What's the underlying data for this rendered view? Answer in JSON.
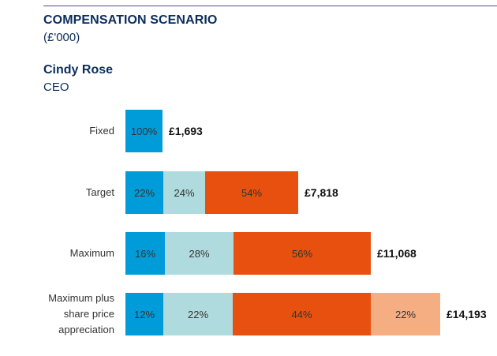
{
  "header": {
    "title": "COMPENSATION SCENARIO",
    "unit": "(£'000)",
    "person_name": "Cindy Rose",
    "person_role": "CEO"
  },
  "chart_data": {
    "type": "bar",
    "orientation": "horizontal",
    "stacked": true,
    "title": "COMPENSATION SCENARIO",
    "unit": "£'000",
    "categories": [
      "Fixed",
      "Target",
      "Maximum",
      "Maximum plus share price appreciation"
    ],
    "totals": [
      1693,
      7818,
      11068,
      14193
    ],
    "total_labels": [
      "£1,693",
      "£7,818",
      "£11,068",
      "£14,193"
    ],
    "segment_colors": [
      "#009bd9",
      "#b0dbde",
      "#e8500f",
      "#f5ae82"
    ],
    "rows": [
      {
        "label": "Fixed",
        "percents": [
          100
        ],
        "labels": [
          "100%"
        ]
      },
      {
        "label": "Target",
        "percents": [
          22,
          24,
          54
        ],
        "labels": [
          "22%",
          "24%",
          "54%"
        ]
      },
      {
        "label": "Maximum",
        "percents": [
          16,
          28,
          56
        ],
        "labels": [
          "16%",
          "28%",
          "56%"
        ]
      },
      {
        "label": "Maximum plus share price appreciation",
        "percents": [
          12,
          22,
          44,
          22
        ],
        "labels": [
          "12%",
          "22%",
          "44%",
          "22%"
        ]
      }
    ],
    "grid": false,
    "legend": "none"
  }
}
